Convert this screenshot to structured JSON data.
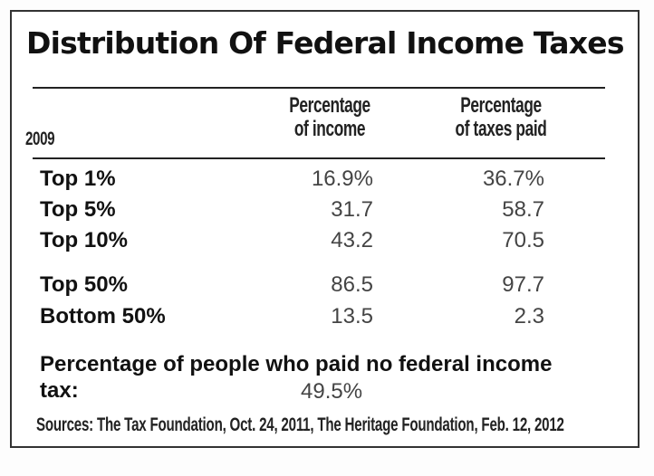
{
  "title": "Distribution Of Federal Income Taxes",
  "header": {
    "year": "2009",
    "income_col": [
      "Percentage",
      "of income"
    ],
    "taxes_col": [
      "Percentage",
      "of taxes paid"
    ]
  },
  "rows": [
    {
      "label": "Top 1%",
      "income": "16.9%",
      "taxes": "36.7%"
    },
    {
      "label": "Top 5%",
      "income": "31.7",
      "taxes": "58.7"
    },
    {
      "label": "Top 10%",
      "income": "43.2",
      "taxes": "70.5"
    },
    {
      "label": "Top 50%",
      "income": "86.5",
      "taxes": "97.7"
    },
    {
      "label": "Bottom 50%",
      "income": "13.5",
      "taxes": "2.3"
    }
  ],
  "note": {
    "label": "Percentage of people who paid no federal income tax:",
    "value": "49.5%"
  },
  "sources": "Sources: The Tax Foundation, Oct. 24, 2011, The Heritage Foundation, Feb. 12, 2012",
  "chart_data": {
    "type": "table",
    "title": "Distribution Of Federal Income Taxes",
    "columns": [
      "2009",
      "Percentage of income",
      "Percentage of taxes paid"
    ],
    "categories": [
      "Top 1%",
      "Top 5%",
      "Top 10%",
      "Top 50%",
      "Bottom 50%"
    ],
    "series": [
      {
        "name": "Percentage of income",
        "values": [
          16.9,
          31.7,
          43.2,
          86.5,
          13.5
        ]
      },
      {
        "name": "Percentage of taxes paid",
        "values": [
          36.7,
          58.7,
          70.5,
          97.7,
          2.3
        ]
      }
    ],
    "annotations": [
      {
        "label": "Percentage of people who paid no federal income tax:",
        "value": 49.5
      }
    ]
  }
}
